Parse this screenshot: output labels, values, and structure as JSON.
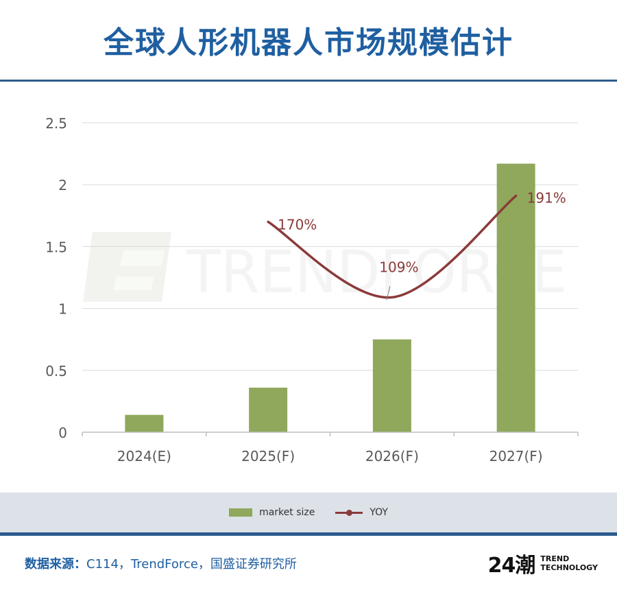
{
  "title": "全球人形机器人市场规模估计",
  "watermark": "TRENDFORCE",
  "chart_data": {
    "type": "bar",
    "categories": [
      "2024(E)",
      "2025(F)",
      "2026(F)",
      "2027(F)"
    ],
    "series": [
      {
        "name": "market size",
        "type": "bar",
        "values": [
          0.14,
          0.36,
          0.75,
          2.17
        ],
        "color": "#8fa85c"
      },
      {
        "name": "YOY",
        "type": "line",
        "values": [
          null,
          1.7,
          1.09,
          1.91
        ],
        "labels": [
          "",
          "170%",
          "109%",
          "191%"
        ],
        "color": "#8b3a3a"
      }
    ],
    "yticks": [
      "0",
      "0.5",
      "1",
      "1.5",
      "2",
      "2.5"
    ],
    "ylim": [
      0,
      2.5
    ],
    "grid": true,
    "legend_position": "bottom"
  },
  "legend": {
    "bar_label": "market size",
    "line_label": "YOY"
  },
  "footer": {
    "source_label": "数据来源：",
    "source_text": "C114，TrendForce，国盛证券研究所",
    "brand_mark": "24潮",
    "brand_line1": "TREND",
    "brand_line2": "TECHNOLOGY"
  }
}
